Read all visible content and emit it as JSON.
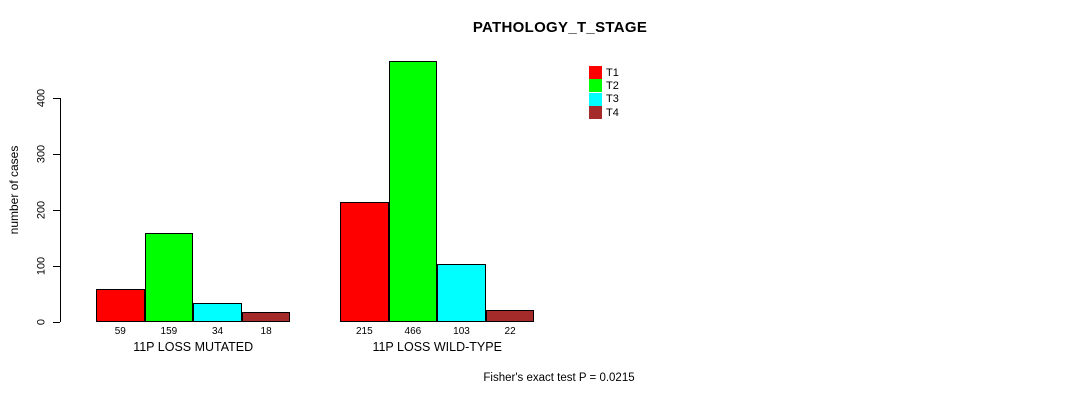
{
  "chart_data": {
    "type": "bar",
    "title": "PATHOLOGY_T_STAGE",
    "ylabel": "number of cases",
    "xlabel": "",
    "ylim": [
      0,
      400
    ],
    "yticks": [
      0,
      100,
      200,
      300,
      400
    ],
    "grid": false,
    "legend_position": "top-right",
    "groups": [
      "11P LOSS MUTATED",
      "11P LOSS WILD-TYPE"
    ],
    "series": [
      {
        "name": "T1",
        "color": "#FF0000",
        "values": [
          59,
          215
        ]
      },
      {
        "name": "T2",
        "color": "#00FF00",
        "values": [
          159,
          466
        ]
      },
      {
        "name": "T3",
        "color": "#00FFFF",
        "values": [
          34,
          103
        ]
      },
      {
        "name": "T4",
        "color": "#A52A2A",
        "values": [
          18,
          22
        ]
      }
    ],
    "bar_value_labels_shown": true,
    "annotation": "Fisher's exact test P = 0.0215"
  }
}
